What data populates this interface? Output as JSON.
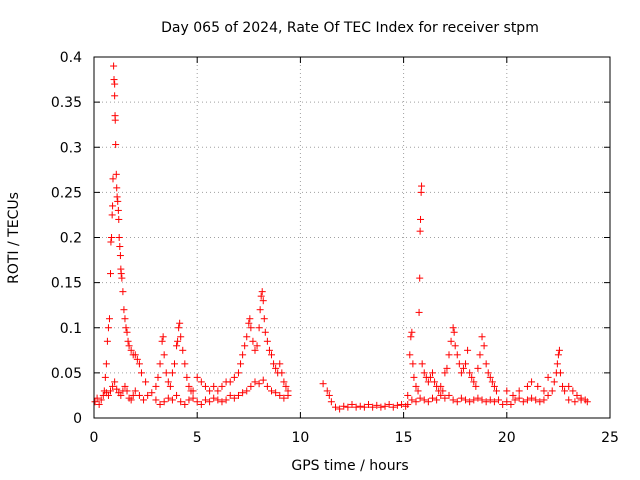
{
  "chart_data": {
    "type": "scatter",
    "title": "Day 065 of 2024, Rate Of TEC Index for receiver stpm",
    "xlabel": "GPS time / hours",
    "ylabel": "ROTI / TECUs",
    "xlim": [
      0,
      25
    ],
    "ylim": [
      0,
      0.4
    ],
    "xticks": [
      0,
      5,
      10,
      15,
      20,
      25
    ],
    "xtick_labels": [
      "0",
      "5",
      "10",
      "15",
      "20",
      "25"
    ],
    "yticks": [
      0,
      0.05,
      0.1,
      0.15,
      0.2,
      0.25,
      0.3,
      0.35,
      0.4
    ],
    "ytick_labels": [
      "0",
      "0.05",
      "0.1",
      "0.15",
      "0.2",
      "0.25",
      "0.3",
      "0.35",
      "0.4"
    ],
    "grid": true,
    "marker": "+",
    "color": "#ff0000",
    "series": [
      {
        "name": "ROTI",
        "points": [
          [
            0.05,
            0.018
          ],
          [
            0.15,
            0.022
          ],
          [
            0.25,
            0.015
          ],
          [
            0.35,
            0.02
          ],
          [
            0.45,
            0.025
          ],
          [
            0.5,
            0.03
          ],
          [
            0.55,
            0.045
          ],
          [
            0.6,
            0.06
          ],
          [
            0.65,
            0.085
          ],
          [
            0.7,
            0.1
          ],
          [
            0.75,
            0.11
          ],
          [
            0.8,
            0.16
          ],
          [
            0.82,
            0.195
          ],
          [
            0.85,
            0.2
          ],
          [
            0.88,
            0.225
          ],
          [
            0.9,
            0.235
          ],
          [
            0.92,
            0.265
          ],
          [
            0.95,
            0.39
          ],
          [
            0.97,
            0.375
          ],
          [
            1.0,
            0.37
          ],
          [
            1.0,
            0.357
          ],
          [
            1.02,
            0.335
          ],
          [
            1.03,
            0.33
          ],
          [
            1.05,
            0.303
          ],
          [
            1.08,
            0.27
          ],
          [
            1.1,
            0.255
          ],
          [
            1.12,
            0.245
          ],
          [
            1.15,
            0.24
          ],
          [
            1.18,
            0.23
          ],
          [
            1.2,
            0.22
          ],
          [
            1.22,
            0.2
          ],
          [
            1.25,
            0.19
          ],
          [
            1.28,
            0.18
          ],
          [
            1.3,
            0.165
          ],
          [
            1.32,
            0.16
          ],
          [
            1.35,
            0.155
          ],
          [
            1.4,
            0.14
          ],
          [
            1.45,
            0.12
          ],
          [
            1.5,
            0.11
          ],
          [
            1.55,
            0.1
          ],
          [
            1.6,
            0.095
          ],
          [
            1.65,
            0.085
          ],
          [
            1.7,
            0.08
          ],
          [
            1.8,
            0.075
          ],
          [
            1.9,
            0.07
          ],
          [
            2.0,
            0.07
          ],
          [
            2.1,
            0.065
          ],
          [
            2.2,
            0.06
          ],
          [
            2.3,
            0.05
          ],
          [
            2.5,
            0.04
          ],
          [
            0.6,
            0.028
          ],
          [
            0.7,
            0.025
          ],
          [
            0.8,
            0.03
          ],
          [
            0.9,
            0.035
          ],
          [
            1.0,
            0.04
          ],
          [
            1.1,
            0.032
          ],
          [
            1.2,
            0.028
          ],
          [
            1.3,
            0.025
          ],
          [
            1.4,
            0.03
          ],
          [
            1.5,
            0.035
          ],
          [
            1.6,
            0.03
          ],
          [
            1.7,
            0.022
          ],
          [
            1.8,
            0.02
          ],
          [
            1.9,
            0.025
          ],
          [
            2.0,
            0.03
          ],
          [
            2.2,
            0.025
          ],
          [
            2.4,
            0.02
          ],
          [
            2.6,
            0.025
          ],
          [
            2.8,
            0.028
          ],
          [
            3.0,
            0.035
          ],
          [
            3.1,
            0.045
          ],
          [
            3.2,
            0.06
          ],
          [
            3.3,
            0.085
          ],
          [
            3.35,
            0.09
          ],
          [
            3.4,
            0.07
          ],
          [
            3.5,
            0.05
          ],
          [
            3.6,
            0.04
          ],
          [
            3.7,
            0.035
          ],
          [
            3.8,
            0.05
          ],
          [
            3.9,
            0.06
          ],
          [
            4.0,
            0.08
          ],
          [
            4.05,
            0.085
          ],
          [
            4.1,
            0.1
          ],
          [
            4.15,
            0.105
          ],
          [
            4.2,
            0.09
          ],
          [
            4.3,
            0.075
          ],
          [
            4.4,
            0.06
          ],
          [
            4.5,
            0.045
          ],
          [
            4.6,
            0.035
          ],
          [
            4.7,
            0.03
          ],
          [
            4.8,
            0.03
          ],
          [
            5.0,
            0.045
          ],
          [
            5.2,
            0.04
          ],
          [
            5.4,
            0.035
          ],
          [
            5.6,
            0.03
          ],
          [
            5.8,
            0.035
          ],
          [
            6.0,
            0.03
          ],
          [
            6.2,
            0.035
          ],
          [
            6.4,
            0.04
          ],
          [
            6.6,
            0.04
          ],
          [
            6.8,
            0.045
          ],
          [
            7.0,
            0.05
          ],
          [
            7.1,
            0.06
          ],
          [
            7.2,
            0.07
          ],
          [
            7.3,
            0.08
          ],
          [
            7.4,
            0.09
          ],
          [
            7.5,
            0.105
          ],
          [
            7.55,
            0.11
          ],
          [
            7.6,
            0.1
          ],
          [
            7.7,
            0.085
          ],
          [
            7.8,
            0.075
          ],
          [
            7.9,
            0.08
          ],
          [
            8.0,
            0.1
          ],
          [
            8.05,
            0.12
          ],
          [
            8.1,
            0.135
          ],
          [
            8.15,
            0.14
          ],
          [
            8.2,
            0.13
          ],
          [
            8.25,
            0.11
          ],
          [
            8.3,
            0.095
          ],
          [
            8.4,
            0.085
          ],
          [
            8.5,
            0.075
          ],
          [
            8.6,
            0.07
          ],
          [
            8.7,
            0.06
          ],
          [
            8.8,
            0.055
          ],
          [
            8.9,
            0.05
          ],
          [
            9.0,
            0.06
          ],
          [
            9.1,
            0.05
          ],
          [
            9.2,
            0.04
          ],
          [
            9.3,
            0.035
          ],
          [
            9.4,
            0.03
          ],
          [
            3.0,
            0.02
          ],
          [
            3.2,
            0.015
          ],
          [
            3.4,
            0.018
          ],
          [
            3.6,
            0.022
          ],
          [
            3.8,
            0.02
          ],
          [
            4.0,
            0.025
          ],
          [
            4.2,
            0.018
          ],
          [
            4.4,
            0.015
          ],
          [
            4.6,
            0.02
          ],
          [
            4.8,
            0.022
          ],
          [
            5.0,
            0.018
          ],
          [
            5.2,
            0.015
          ],
          [
            5.4,
            0.02
          ],
          [
            5.6,
            0.018
          ],
          [
            5.8,
            0.022
          ],
          [
            6.0,
            0.02
          ],
          [
            6.2,
            0.018
          ],
          [
            6.4,
            0.02
          ],
          [
            6.6,
            0.025
          ],
          [
            6.8,
            0.022
          ],
          [
            7.0,
            0.025
          ],
          [
            7.2,
            0.028
          ],
          [
            7.4,
            0.03
          ],
          [
            7.6,
            0.035
          ],
          [
            7.8,
            0.04
          ],
          [
            8.0,
            0.038
          ],
          [
            8.2,
            0.042
          ],
          [
            8.4,
            0.035
          ],
          [
            8.6,
            0.03
          ],
          [
            8.8,
            0.028
          ],
          [
            9.0,
            0.025
          ],
          [
            9.2,
            0.022
          ],
          [
            9.4,
            0.025
          ],
          [
            11.1,
            0.038
          ],
          [
            11.3,
            0.03
          ],
          [
            11.4,
            0.025
          ],
          [
            11.5,
            0.018
          ],
          [
            11.7,
            0.012
          ],
          [
            11.9,
            0.01
          ],
          [
            12.1,
            0.013
          ],
          [
            12.3,
            0.012
          ],
          [
            12.5,
            0.015
          ],
          [
            12.7,
            0.012
          ],
          [
            12.9,
            0.013
          ],
          [
            13.1,
            0.012
          ],
          [
            13.3,
            0.015
          ],
          [
            13.5,
            0.012
          ],
          [
            13.7,
            0.014
          ],
          [
            13.9,
            0.012
          ],
          [
            14.1,
            0.013
          ],
          [
            14.3,
            0.015
          ],
          [
            14.5,
            0.012
          ],
          [
            14.7,
            0.014
          ],
          [
            14.9,
            0.015
          ],
          [
            15.1,
            0.013
          ],
          [
            15.2,
            0.025
          ],
          [
            15.3,
            0.07
          ],
          [
            15.35,
            0.09
          ],
          [
            15.4,
            0.095
          ],
          [
            15.45,
            0.06
          ],
          [
            15.5,
            0.045
          ],
          [
            15.6,
            0.035
          ],
          [
            15.7,
            0.03
          ],
          [
            15.75,
            0.117
          ],
          [
            15.78,
            0.155
          ],
          [
            15.8,
            0.207
          ],
          [
            15.82,
            0.22
          ],
          [
            15.85,
            0.25
          ],
          [
            15.87,
            0.257
          ],
          [
            15.9,
            0.06
          ],
          [
            16.0,
            0.05
          ],
          [
            16.1,
            0.045
          ],
          [
            16.2,
            0.04
          ],
          [
            16.3,
            0.045
          ],
          [
            16.4,
            0.05
          ],
          [
            16.5,
            0.04
          ],
          [
            16.6,
            0.035
          ],
          [
            16.7,
            0.03
          ],
          [
            16.8,
            0.035
          ],
          [
            16.9,
            0.03
          ],
          [
            17.0,
            0.05
          ],
          [
            17.1,
            0.055
          ],
          [
            17.2,
            0.07
          ],
          [
            17.3,
            0.085
          ],
          [
            17.4,
            0.1
          ],
          [
            17.45,
            0.095
          ],
          [
            17.5,
            0.08
          ],
          [
            17.6,
            0.07
          ],
          [
            17.7,
            0.06
          ],
          [
            17.8,
            0.05
          ],
          [
            17.9,
            0.055
          ],
          [
            18.0,
            0.06
          ],
          [
            18.1,
            0.075
          ],
          [
            18.2,
            0.05
          ],
          [
            18.3,
            0.045
          ],
          [
            18.4,
            0.04
          ],
          [
            18.5,
            0.035
          ],
          [
            18.6,
            0.055
          ],
          [
            18.7,
            0.07
          ],
          [
            18.8,
            0.09
          ],
          [
            18.9,
            0.08
          ],
          [
            19.0,
            0.06
          ],
          [
            19.1,
            0.05
          ],
          [
            19.2,
            0.045
          ],
          [
            19.3,
            0.04
          ],
          [
            19.4,
            0.035
          ],
          [
            19.5,
            0.03
          ],
          [
            15.2,
            0.015
          ],
          [
            15.4,
            0.02
          ],
          [
            15.6,
            0.018
          ],
          [
            15.8,
            0.022
          ],
          [
            16.0,
            0.02
          ],
          [
            16.2,
            0.018
          ],
          [
            16.4,
            0.022
          ],
          [
            16.6,
            0.02
          ],
          [
            16.8,
            0.025
          ],
          [
            17.0,
            0.022
          ],
          [
            17.2,
            0.025
          ],
          [
            17.4,
            0.02
          ],
          [
            17.6,
            0.018
          ],
          [
            17.8,
            0.022
          ],
          [
            18.0,
            0.02
          ],
          [
            18.2,
            0.018
          ],
          [
            18.4,
            0.02
          ],
          [
            18.6,
            0.022
          ],
          [
            18.8,
            0.02
          ],
          [
            19.0,
            0.018
          ],
          [
            19.2,
            0.02
          ],
          [
            19.4,
            0.018
          ],
          [
            19.6,
            0.02
          ],
          [
            19.8,
            0.015
          ],
          [
            20.0,
            0.018
          ],
          [
            20.2,
            0.015
          ],
          [
            20.4,
            0.02
          ],
          [
            20.6,
            0.022
          ],
          [
            20.8,
            0.018
          ],
          [
            21.0,
            0.02
          ],
          [
            21.2,
            0.022
          ],
          [
            21.4,
            0.02
          ],
          [
            21.6,
            0.018
          ],
          [
            21.8,
            0.02
          ],
          [
            22.0,
            0.025
          ],
          [
            22.2,
            0.03
          ],
          [
            22.3,
            0.04
          ],
          [
            22.4,
            0.05
          ],
          [
            22.45,
            0.06
          ],
          [
            22.5,
            0.07
          ],
          [
            22.55,
            0.075
          ],
          [
            22.6,
            0.05
          ],
          [
            22.7,
            0.035
          ],
          [
            22.8,
            0.03
          ],
          [
            23.0,
            0.035
          ],
          [
            23.2,
            0.03
          ],
          [
            23.4,
            0.025
          ],
          [
            23.6,
            0.022
          ],
          [
            23.8,
            0.02
          ],
          [
            23.9,
            0.018
          ],
          [
            20.0,
            0.03
          ],
          [
            20.3,
            0.025
          ],
          [
            20.6,
            0.03
          ],
          [
            21.0,
            0.035
          ],
          [
            21.2,
            0.04
          ],
          [
            21.5,
            0.035
          ],
          [
            21.8,
            0.03
          ],
          [
            22.0,
            0.045
          ],
          [
            23.0,
            0.02
          ],
          [
            23.3,
            0.018
          ],
          [
            23.6,
            0.02
          ]
        ]
      }
    ]
  }
}
